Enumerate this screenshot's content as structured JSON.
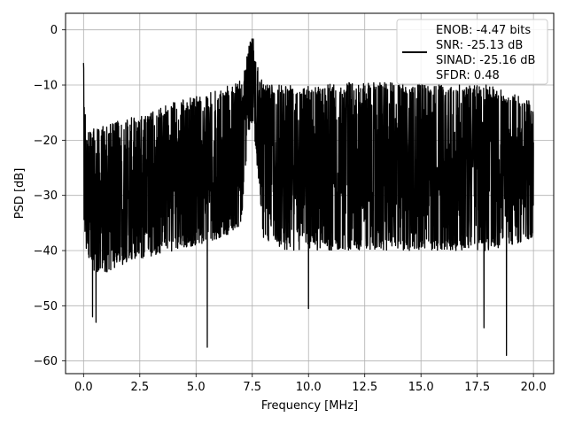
{
  "chart_data": {
    "type": "line",
    "title": "",
    "xlabel": "Frequency [MHz]",
    "ylabel": "PSD [dB]",
    "xlim": [
      -0.8,
      20.9
    ],
    "ylim": [
      -62.3,
      3.0
    ],
    "xticks": [
      0.0,
      2.5,
      5.0,
      7.5,
      10.0,
      12.5,
      15.0,
      17.5,
      20.0
    ],
    "xtick_labels": [
      "0.0",
      "2.5",
      "5.0",
      "7.5",
      "10.0",
      "12.5",
      "15.0",
      "17.5",
      "20.0"
    ],
    "yticks": [
      0,
      -10,
      -20,
      -30,
      -40,
      -50,
      -60
    ],
    "ytick_labels": [
      "0",
      "−10",
      "−20",
      "−30",
      "−40",
      "−50",
      "−60"
    ],
    "grid": true,
    "legend_placement": "top-right",
    "line_color": "#000000",
    "series": [
      {
        "legend_lines": [
          "ENOB: -4.47 bits",
          "SNR: -25.13 dB",
          "SINAD: -25.16 dB",
          "SFDR: 0.48"
        ],
        "envelope": {
          "x": [
            0.0,
            0.1,
            0.5,
            1.0,
            2.0,
            3.0,
            4.0,
            5.0,
            6.0,
            7.0,
            7.3,
            7.5,
            7.7,
            8.0,
            9.0,
            10.0,
            12.0,
            14.0,
            16.0,
            18.0,
            20.0
          ],
          "upper": [
            -6,
            -17,
            -18,
            -17,
            -16,
            -15,
            -13,
            -12,
            -11,
            -9,
            -4,
            0,
            -6,
            -10,
            -10,
            -10,
            -9.5,
            -9.5,
            -10,
            -10,
            -13
          ],
          "lower": [
            -35,
            -40,
            -44,
            -44,
            -42,
            -41,
            -40,
            -39,
            -38,
            -36,
            -20,
            -17,
            -24,
            -38,
            -40,
            -40,
            -40,
            -40,
            -40,
            -40,
            -38
          ]
        },
        "notable_minima": [
          {
            "x": 0.4,
            "y": -52
          },
          {
            "x": 0.55,
            "y": -53
          },
          {
            "x": 5.5,
            "y": -57.5
          },
          {
            "x": 10.0,
            "y": -50.5
          },
          {
            "x": 17.8,
            "y": -54
          },
          {
            "x": 18.8,
            "y": -59
          }
        ]
      }
    ]
  }
}
